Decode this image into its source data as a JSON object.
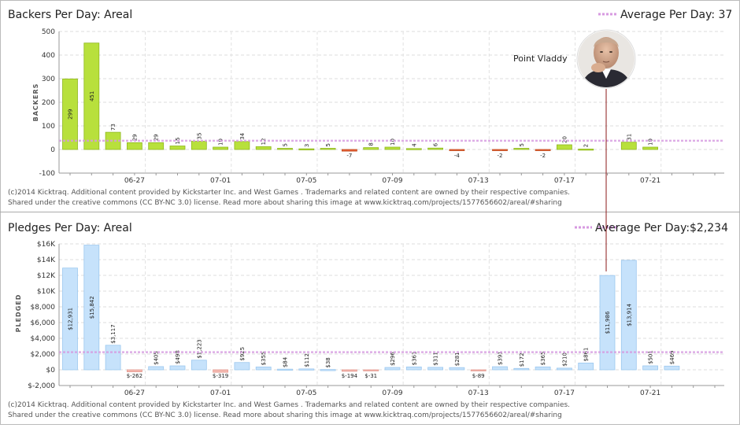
{
  "footer": {
    "line1": "(c)2014 Kicktraq. Additional content provided by Kickstarter Inc. and  West Games . Trademarks and related content are owned by their respective companies.",
    "line2": "Shared under the creative commons (CC BY-NC 3.0) license. Read more about sharing this image at www.kicktraq.com/projects/1577656602/areal/#sharing"
  },
  "annotation": {
    "text": "Point Vladdy"
  },
  "colors": {
    "backers_positive": "#b8e03c",
    "backers_negative": "#e8623a",
    "pledges_positive": "#c6e2fb",
    "pledges_negative": "#f4b8b0",
    "average_line": "#d79ae0",
    "annotation_line": "#8b1a1a"
  },
  "chart_data": [
    {
      "type": "bar",
      "title": "Backers Per Day: Areal",
      "ylabel": "BACKERS",
      "average_label": "Average Per Day: 37",
      "average": 37,
      "ylim": [
        -100,
        500
      ],
      "yticks": [
        -100,
        0,
        100,
        200,
        300,
        400,
        500
      ],
      "ytick_labels": [
        "-100",
        "0",
        "100",
        "200",
        "300",
        "400",
        "500"
      ],
      "xtick_labels": [
        "06-27",
        "07-01",
        "07-05",
        "07-09",
        "07-13",
        "07-17",
        "07-21"
      ],
      "grid": true,
      "values": [
        299,
        451,
        73,
        29,
        29,
        15,
        35,
        10,
        34,
        12,
        5,
        3,
        5,
        -7,
        8,
        10,
        4,
        6,
        -4,
        0,
        -2,
        5,
        -2,
        20,
        2,
        0,
        31,
        10,
        0,
        0,
        0
      ],
      "value_labels": [
        "299",
        "451",
        "73",
        "29",
        "29",
        "15",
        "35",
        "10",
        "34",
        "12",
        "5",
        "3",
        "5",
        "-7",
        "8",
        "10",
        "4",
        "6",
        "-4",
        "",
        "-2",
        "5",
        "-2",
        "20",
        "2",
        "",
        "31",
        "10",
        "",
        "",
        ""
      ]
    },
    {
      "type": "bar",
      "title": "Pledges Per Day: Areal",
      "ylabel": "PLEDGED",
      "average_label": "Average Per Day: ",
      "average_value": "$2,234",
      "average": 2234,
      "ylim": [
        -2000,
        16000
      ],
      "yticks": [
        -2000,
        0,
        2000,
        4000,
        6000,
        8000,
        10000,
        12000,
        14000,
        16000
      ],
      "ytick_labels": [
        "$-2,000",
        "$0",
        "$2,000",
        "$4,000",
        "$6,000",
        "$8,000",
        "$10K",
        "$12K",
        "$14K",
        "$16K"
      ],
      "xtick_labels": [
        "06-27",
        "07-01",
        "07-05",
        "07-09",
        "07-13",
        "07-17",
        "07-21"
      ],
      "grid": true,
      "values": [
        12931,
        15842,
        3117,
        -262,
        405,
        498,
        1223,
        -319,
        925,
        355,
        84,
        112,
        38,
        -194,
        -31,
        296,
        361,
        311,
        281,
        -89,
        391,
        172,
        365,
        210,
        861,
        11986,
        13914,
        501,
        469,
        0,
        0
      ],
      "value_labels": [
        "$12,931",
        "$15,842",
        "$3,117",
        "$-262",
        "$405",
        "$498",
        "$1,223",
        "$-319",
        "$925",
        "$355",
        "$84",
        "$112",
        "$38",
        "$-194",
        "$-31",
        "$296",
        "$361",
        "$311",
        "$281",
        "$-89",
        "$391",
        "$172",
        "$365",
        "$210",
        "$861",
        "$11,986",
        "$13,914",
        "$501",
        "$469",
        "",
        ""
      ]
    }
  ]
}
